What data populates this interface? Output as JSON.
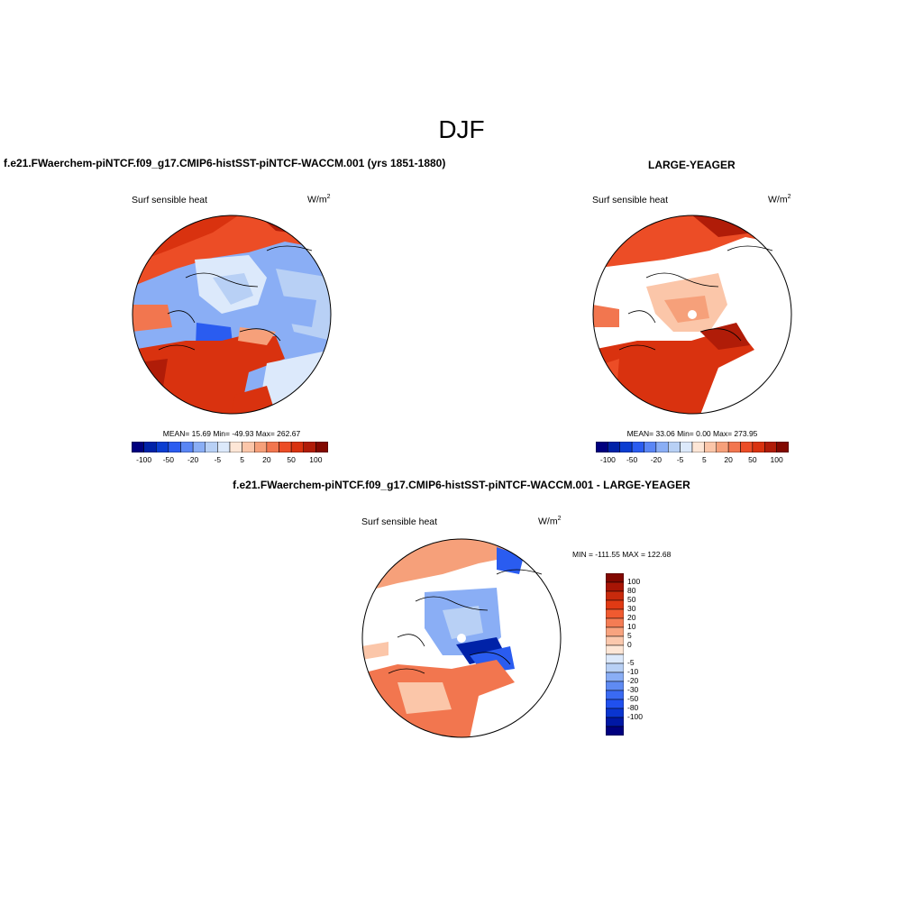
{
  "title": "DJF",
  "panels": [
    {
      "id": "test",
      "title": "f.e21.FWaerchem-piNTCF.f09_g17.CMIP6-histSST-piNTCF-WACCM.001 (yrs 1851-1880)",
      "variable": "Surf sensible heat",
      "units": "W/m",
      "units_sup": "2",
      "stats": "MEAN=  15.69  Min= -49.93  Max= 262.67"
    },
    {
      "id": "obs",
      "title": "LARGE-YEAGER",
      "variable": "Surf sensible heat",
      "units": "W/m",
      "units_sup": "2",
      "stats": "MEAN=  33.06  Min=    0.00  Max= 273.95"
    },
    {
      "id": "diff",
      "title": "f.e21.FWaerchem-piNTCF.f09_g17.CMIP6-histSST-piNTCF-WACCM.001 - LARGE-YEAGER",
      "variable": "Surf sensible heat",
      "units": "W/m",
      "units_sup": "2",
      "stats": "MIN = -111.55 MAX = 122.68"
    }
  ],
  "colorbar": {
    "colors": [
      "#00007f",
      "#0022a8",
      "#0a3dd1",
      "#2a5cf0",
      "#5a86f5",
      "#8aaef5",
      "#b8d0f5",
      "#dce9fb",
      "#fde6d6",
      "#fbc6a9",
      "#f6a07a",
      "#f2764f",
      "#ec4d26",
      "#d9320f",
      "#b01c08",
      "#820800"
    ],
    "horizontal_ticks": [
      "-100",
      "-50",
      "-20",
      "-5",
      "5",
      "20",
      "50",
      "100"
    ],
    "vertical_colors": [
      "#820800",
      "#a81505",
      "#c82a0c",
      "#e03a14",
      "#f05a30",
      "#f47c54",
      "#f8a37f",
      "#fbc8ad",
      "#fde6d6",
      "#dce9fb",
      "#b8d0f5",
      "#8aaef5",
      "#5f8bf3",
      "#3a6af2",
      "#2050ee",
      "#0a35d0",
      "#0018a5",
      "#00007f"
    ],
    "vertical_ticks": [
      "100",
      "80",
      "50",
      "30",
      "20",
      "10",
      "5",
      "0",
      "-5",
      "-10",
      "-20",
      "-30",
      "-50",
      "-80",
      "-100"
    ]
  }
}
